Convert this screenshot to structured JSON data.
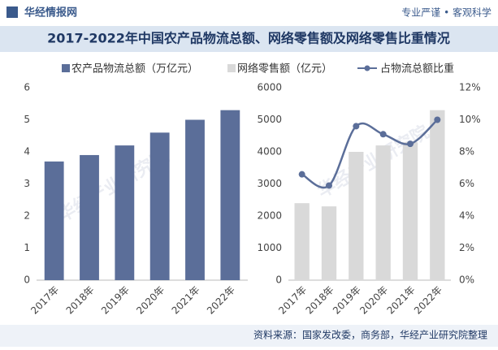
{
  "header": {
    "brand": "华经情报网",
    "slogan": "专业严谨 • 客观科学"
  },
  "title": "2017-2022年中国农产品物流总额、网络零售额及网络零售比重情况",
  "watermark": "华经产业研究院",
  "source": "资料来源：国家发改委，商务部，华经产业研究院整理",
  "chart_data": [
    {
      "type": "bar",
      "categories": [
        "2017年",
        "2018年",
        "2019年",
        "2020年",
        "2021年",
        "2022年"
      ],
      "series": [
        {
          "name": "农产品物流总额（万亿元）",
          "color": "#5b6e99",
          "values": [
            3.7,
            3.9,
            4.2,
            4.6,
            5.0,
            5.3
          ]
        }
      ],
      "ylim": [
        0,
        6
      ],
      "yticks": [
        0,
        1,
        2,
        3,
        4,
        5,
        6
      ],
      "grid": false
    },
    {
      "type": "bar",
      "categories": [
        "2017年",
        "2018年",
        "2019年",
        "2020年",
        "2021年",
        "2022年"
      ],
      "series": [
        {
          "name": "网络零售额（亿元）",
          "color": "#d9d9d9",
          "values": [
            2400,
            2300,
            4000,
            4200,
            4300,
            5300
          ]
        },
        {
          "name": "占物流总额比重",
          "color": "#5b6e99",
          "type": "line",
          "axis": "y2",
          "values": [
            6.6,
            5.9,
            9.6,
            9.1,
            8.5,
            10.0
          ]
        }
      ],
      "ylim": [
        0,
        6000
      ],
      "yticks": [
        0,
        1000,
        2000,
        3000,
        4000,
        5000,
        6000
      ],
      "y2lim": [
        0,
        12
      ],
      "y2ticks": [
        {
          "value": 0,
          "label": "0%"
        },
        {
          "value": 2,
          "label": "2%"
        },
        {
          "value": 4,
          "label": "4%"
        },
        {
          "value": 6,
          "label": "6%"
        },
        {
          "value": 8,
          "label": "8%"
        },
        {
          "value": 10,
          "label": "10%"
        },
        {
          "value": 12,
          "label": "12%"
        }
      ],
      "grid": false
    }
  ]
}
